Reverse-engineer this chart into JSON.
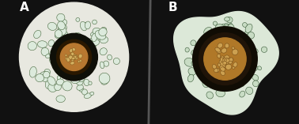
{
  "label_A": "A",
  "label_B": "B",
  "label_color": "white",
  "label_fontsize": 11,
  "label_fontweight": "bold",
  "bg_color_A": "#000000",
  "bg_color_B": "#c8a898",
  "fig_bg": "#000000",
  "divider_color": "#888888",
  "panel_A": {
    "bg": "#f5f5f5",
    "circle_bg": "#f0f0e8",
    "outer_circle_color": "#c8c8b0",
    "cell_color": "#d8e8d0",
    "cell_outline": "#4a6a4a",
    "dark_ring_color": "#1a1a0a",
    "center_color": "#c8a060",
    "center_cells": "#e0c080"
  },
  "panel_B": {
    "bg": "#d4b8a8",
    "cell_color": "#c8d8c0",
    "cell_outline": "#3a5a3a",
    "dark_ring_color": "#1a1008",
    "center_color": "#b89060",
    "center_cells": "#d0a870"
  },
  "figsize": [
    3.78,
    1.57
  ],
  "dpi": 100
}
